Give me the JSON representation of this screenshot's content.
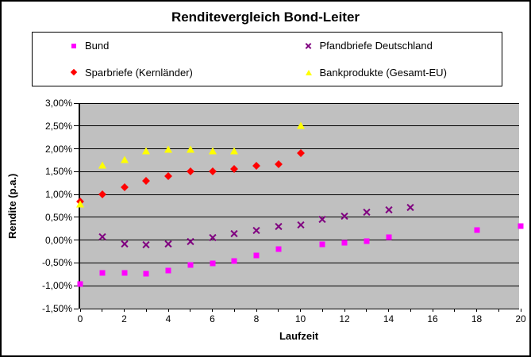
{
  "window": {
    "title": "Renditevergleich Bond-Leiter"
  },
  "chart_data": {
    "type": "scatter",
    "title": "Renditevergleich Bond-Leiter",
    "xlabel": "Laufzeit",
    "ylabel": "Rendite (p.a.)",
    "xlim": [
      0,
      20
    ],
    "ylim": [
      -1.5,
      3.0
    ],
    "grid": "horizontal",
    "legend_position": "top",
    "plot_background": "#c0c0c0",
    "y_tick_labels": [
      "3,00%",
      "2,50%",
      "2,00%",
      "1,50%",
      "1,00%",
      "0,50%",
      "0,00%",
      "-0,50%",
      "-1,00%",
      "-1,50%"
    ],
    "y_tick_values": [
      3.0,
      2.5,
      2.0,
      1.5,
      1.0,
      0.5,
      0.0,
      -0.5,
      -1.0,
      -1.5
    ],
    "x_tick_labels": [
      "0",
      "2",
      "4",
      "6",
      "8",
      "10",
      "12",
      "14",
      "16",
      "18",
      "20"
    ],
    "x_tick_values": [
      0,
      2,
      4,
      6,
      8,
      10,
      12,
      14,
      16,
      18,
      20
    ],
    "x_minor_tick_step": 1,
    "series": [
      {
        "name": "Bund",
        "marker": "square",
        "color": "#ff00ff",
        "points": [
          [
            0,
            -0.97
          ],
          [
            1,
            -0.71
          ],
          [
            2,
            -0.72
          ],
          [
            3,
            -0.73
          ],
          [
            4,
            -0.67
          ],
          [
            5,
            -0.55
          ],
          [
            6,
            -0.51
          ],
          [
            7,
            -0.45
          ],
          [
            8,
            -0.34
          ],
          [
            9,
            -0.19
          ],
          [
            11,
            -0.1
          ],
          [
            12,
            -0.06
          ],
          [
            13,
            -0.03
          ],
          [
            14,
            0.07
          ],
          [
            18,
            0.22
          ],
          [
            20,
            0.3
          ]
        ]
      },
      {
        "name": "Pfandbriefe Deutschland",
        "marker": "x",
        "color": "#800080",
        "points": [
          [
            1,
            0.08
          ],
          [
            2,
            -0.09
          ],
          [
            3,
            -0.1
          ],
          [
            4,
            -0.09
          ],
          [
            5,
            -0.03
          ],
          [
            6,
            0.05
          ],
          [
            7,
            0.14
          ],
          [
            8,
            0.22
          ],
          [
            9,
            0.3
          ],
          [
            10,
            0.34
          ],
          [
            11,
            0.45
          ],
          [
            12,
            0.52
          ],
          [
            13,
            0.61
          ],
          [
            14,
            0.66
          ],
          [
            15,
            0.72
          ]
        ]
      },
      {
        "name": "Sparbriefe (Kernländer)",
        "marker": "diamond",
        "color": "#ff0000",
        "points": [
          [
            0,
            0.85
          ],
          [
            1,
            1.0
          ],
          [
            2,
            1.15
          ],
          [
            3,
            1.29
          ],
          [
            4,
            1.4
          ],
          [
            5,
            1.5
          ],
          [
            6,
            1.5
          ],
          [
            7,
            1.56
          ],
          [
            8,
            1.62
          ],
          [
            9,
            1.67
          ],
          [
            10,
            1.91
          ]
        ]
      },
      {
        "name": "Bankprodukte (Gesamt-EU)",
        "marker": "triangle",
        "color": "#ffff00",
        "points": [
          [
            0,
            0.79
          ],
          [
            1,
            1.65
          ],
          [
            2,
            1.76
          ],
          [
            3,
            1.95
          ],
          [
            4,
            2.0
          ],
          [
            5,
            2.0
          ],
          [
            6,
            1.95
          ],
          [
            7,
            1.95
          ],
          [
            10,
            2.51
          ]
        ]
      }
    ]
  }
}
